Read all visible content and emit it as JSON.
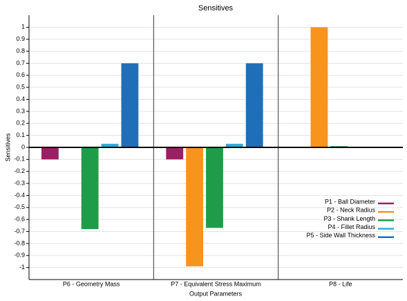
{
  "chart_data": {
    "type": "bar",
    "title": "Sensitives",
    "x_label": "Output Parameters",
    "y_label": "Sensitives",
    "categories": [
      "P6 - Geometry Mass",
      "P7 - Equivalent  Stress  Maximum",
      "P8 - Life"
    ],
    "series": [
      {
        "name": "P1 - Ball Diameter",
        "color": "#9b1f63",
        "values": [
          -0.1,
          -0.1,
          0.002
        ]
      },
      {
        "name": "P2 - Neck Radius",
        "color": "#f7941d",
        "values": [
          -0.005,
          -0.99,
          1.0
        ]
      },
      {
        "name": "P3 - Shank Length",
        "color": "#1e9c48",
        "values": [
          -0.68,
          -0.67,
          0.01
        ]
      },
      {
        "name": "P4 - Fillet Radius",
        "color": "#2eaadc",
        "values": [
          0.03,
          0.03,
          0.003
        ]
      },
      {
        "name": "P5 - Side Wall Thickness",
        "color": "#1f6fb8",
        "values": [
          0.7,
          0.7,
          0.003
        ]
      }
    ],
    "ylim": [
      -1.1,
      1.1
    ],
    "yticks": [
      -1,
      -0.9,
      -0.8,
      -0.7,
      -0.6,
      -0.5,
      -0.4,
      -0.3,
      -0.2,
      -0.1,
      0,
      0.1,
      0.2,
      0.3,
      0.4,
      0.5,
      0.6,
      0.7,
      0.8,
      0.9,
      1
    ],
    "grid": true,
    "legend": "bottom-right"
  }
}
